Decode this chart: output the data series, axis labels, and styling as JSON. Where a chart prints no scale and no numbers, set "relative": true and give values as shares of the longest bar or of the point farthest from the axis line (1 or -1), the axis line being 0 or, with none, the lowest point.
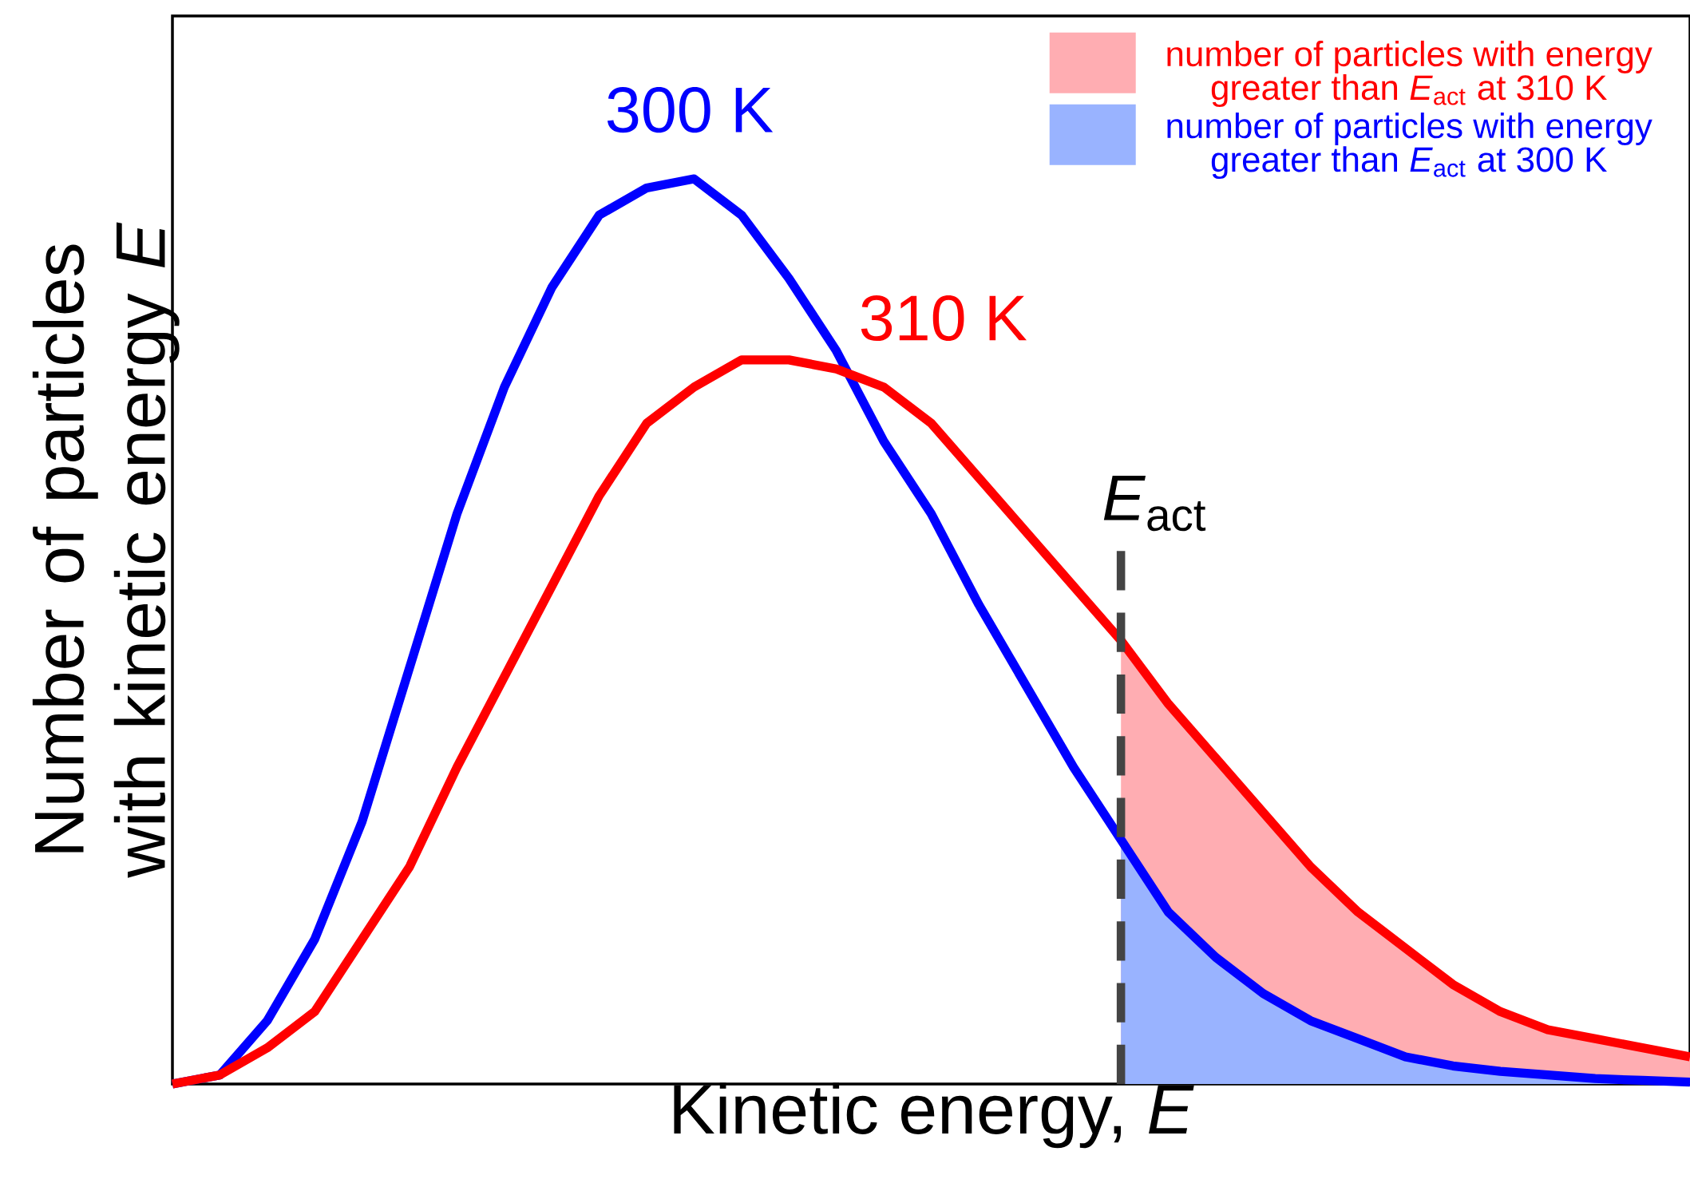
{
  "chart_data": {
    "type": "line",
    "relative": true,
    "xlabel": "Kinetic energy, *E*",
    "ylabel": "Number of particles with kinetic energy *E*",
    "legend": "top right",
    "categories": [
      null,
      null,
      null,
      null,
      null,
      null,
      null,
      null,
      null,
      null,
      null,
      null,
      null,
      null,
      null,
      null,
      null,
      null,
      null,
      null,
      null,
      null,
      null,
      null,
      null,
      null,
      null,
      null,
      null,
      null,
      null,
      null,
      null
    ],
    "series": [
      {
        "type": "area",
        "name": "number of particles with energy greater than *E*$_{act}$ at 300 K",
        "color": "#99b3ff",
        "values": [
          null,
          null,
          null,
          null,
          null,
          null,
          null,
          null,
          null,
          null,
          null,
          null,
          null,
          null,
          null,
          null,
          null,
          null,
          null,
          null,
          0.27,
          0.19,
          0.14,
          0.1,
          0.07,
          0.05,
          0.03,
          0.02,
          0.014,
          0.01,
          0.006,
          0.004,
          0.002
        ]
      },
      {
        "type": "area",
        "name": "number of particles with energy greater than *E*$_{act}$ at 310 K",
        "color": "#ffadb2",
        "values": [
          null,
          null,
          null,
          null,
          null,
          null,
          null,
          null,
          null,
          null,
          null,
          null,
          null,
          null,
          null,
          null,
          null,
          null,
          null,
          null,
          0.49,
          0.42,
          0.36,
          0.3,
          0.24,
          0.19,
          0.15,
          0.11,
          0.08,
          0.06,
          0.05,
          0.04,
          0.03
        ]
      },
      {
        "name": "300 K",
        "color": "#0000ff",
        "values": [
          0,
          0.01,
          0.07,
          0.16,
          0.29,
          0.46,
          0.63,
          0.77,
          0.88,
          0.96,
          0.99,
          1.0,
          0.96,
          0.89,
          0.81,
          0.71,
          0.63,
          0.53,
          0.44,
          0.35,
          0.27,
          0.19,
          0.14,
          0.1,
          0.07,
          0.05,
          0.03,
          0.02,
          0.014,
          0.01,
          0.006,
          0.004,
          0.002
        ]
      },
      {
        "name": "310 K",
        "color": "#ff0000",
        "values": [
          0,
          0.01,
          0.04,
          0.08,
          0.16,
          0.24,
          0.35,
          0.45,
          0.55,
          0.65,
          0.73,
          0.77,
          0.8,
          0.8,
          0.79,
          0.77,
          0.73,
          0.67,
          0.61,
          0.55,
          0.49,
          0.42,
          0.36,
          0.3,
          0.24,
          0.19,
          0.15,
          0.11,
          0.08,
          0.06,
          0.05,
          0.04,
          0.03
        ]
      }
    ],
    "annotations": [
      "*E*$_{act}$"
    ]
  }
}
